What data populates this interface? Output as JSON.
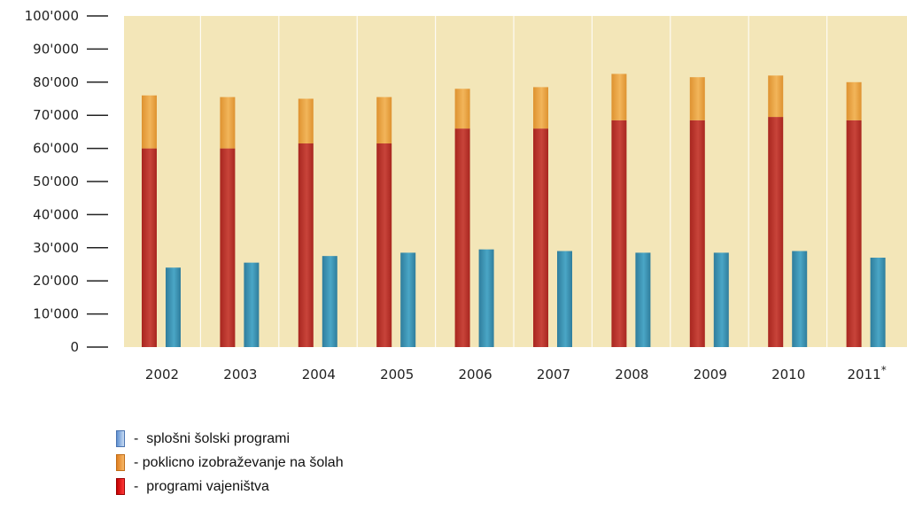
{
  "chart_data": {
    "type": "bar",
    "categories": [
      "2002",
      "2003",
      "2004",
      "2005",
      "2006",
      "2007",
      "2008",
      "2009",
      "2010",
      "2011"
    ],
    "category_suffix": {
      "2011": "*"
    },
    "stacked_series": [
      {
        "key": "vajenistvo",
        "values": [
          60000,
          60000,
          61500,
          61500,
          66000,
          66000,
          68500,
          68500,
          69500,
          68500
        ],
        "color": "#b8302a"
      },
      {
        "key": "poklicno",
        "values": [
          16000,
          15500,
          13500,
          14000,
          12000,
          12500,
          14000,
          13000,
          12500,
          11500
        ],
        "color": "#e8a03c"
      }
    ],
    "side_series": [
      {
        "key": "splosni",
        "values": [
          24000,
          25500,
          27500,
          28500,
          29500,
          29000,
          28500,
          28500,
          29000,
          27000
        ],
        "color": "#3a8fae"
      }
    ],
    "y_ticks": [
      "0",
      "10'000",
      "20'000",
      "30'000",
      "40'000",
      "50'000",
      "60'000",
      "70'000",
      "80'000",
      "90'000",
      "100'000"
    ],
    "ylim": [
      0,
      100000
    ],
    "grid": true,
    "background_color": "#f3e6b8",
    "legend_placement": "bottom-left",
    "legend": [
      {
        "label": "-  splošni šolski programi",
        "color": "#8fb3e0"
      },
      {
        "label": "- poklicno izobraževanje na šolah",
        "color": "#f29a3a"
      },
      {
        "label": "-  programi vajeništva",
        "color": "#e81b1b"
      }
    ]
  }
}
